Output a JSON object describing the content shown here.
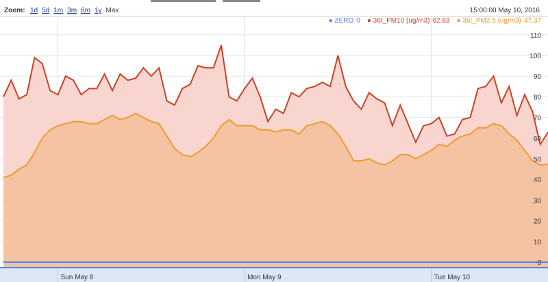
{
  "toolbar": {
    "zoom_label": "Zoom:",
    "zoom_options": [
      "1d",
      "5d",
      "1m",
      "3m",
      "6m",
      "1y",
      "Max"
    ],
    "date_display": "15:00:00 May 10, 2016"
  },
  "chart_data": {
    "type": "area",
    "xlim": [
      0,
      70
    ],
    "xticks": [
      {
        "value": 7,
        "label": "Sun May 8"
      },
      {
        "value": 31,
        "label": "Mon May 9"
      },
      {
        "value": 55,
        "label": "Tue May 10"
      }
    ],
    "ylim": [
      0,
      115
    ],
    "yticks": [
      0,
      10,
      20,
      30,
      40,
      50,
      60,
      70,
      80,
      90,
      100,
      110
    ],
    "grid": true,
    "series": [
      {
        "name": "ZERO",
        "color": "#4a86e8",
        "fill": "none",
        "values": [
          0,
          0,
          0,
          0,
          0,
          0,
          0,
          0,
          0,
          0,
          0,
          0,
          0,
          0,
          0,
          0,
          0,
          0,
          0,
          0,
          0,
          0,
          0,
          0,
          0,
          0,
          0,
          0,
          0,
          0,
          0,
          0,
          0,
          0,
          0,
          0,
          0,
          0,
          0,
          0,
          0,
          0,
          0,
          0,
          0,
          0,
          0,
          0,
          0,
          0,
          0,
          0,
          0,
          0,
          0,
          0,
          0,
          0,
          0,
          0,
          0,
          0,
          0,
          0,
          0,
          0,
          0,
          0,
          0,
          0,
          0
        ]
      },
      {
        "name": "36t_PM10 (ug/m3)",
        "color": "#cc4125",
        "fill": "#f8d6cf",
        "values": [
          80,
          88,
          79,
          81,
          99,
          96,
          83,
          81,
          90,
          88,
          81,
          84,
          84,
          91,
          83,
          91,
          88,
          89,
          94,
          90,
          94,
          78,
          76,
          84,
          86,
          95,
          94,
          94,
          105,
          80,
          78,
          84,
          89,
          80,
          68,
          74,
          72,
          82,
          80,
          84,
          85,
          87,
          85,
          100,
          85,
          78,
          74,
          82,
          79,
          77,
          66,
          76,
          67,
          58,
          66,
          67,
          70,
          61,
          62,
          69,
          70,
          84,
          85,
          90,
          77,
          85,
          71,
          81,
          73,
          57,
          62.83
        ]
      },
      {
        "name": "36t_PM2.5 (ug/m3)",
        "color": "#f09a2e",
        "fill": "#f6c3a2",
        "values": [
          41,
          42,
          45,
          47,
          53,
          60,
          64,
          66,
          67,
          68,
          68,
          67,
          67,
          69,
          71,
          69,
          70,
          72,
          70,
          68,
          67,
          61,
          55,
          52,
          51,
          53,
          56,
          60,
          66,
          69,
          66,
          66,
          66,
          64,
          64,
          63,
          64,
          64,
          62,
          66,
          67,
          68,
          66,
          62,
          56,
          49,
          49,
          50,
          48,
          47,
          49,
          52,
          52,
          50,
          52,
          54,
          57,
          56,
          59,
          61,
          62,
          65,
          65,
          67,
          66,
          62,
          59,
          54,
          49,
          47,
          47.37
        ]
      }
    ]
  }
}
